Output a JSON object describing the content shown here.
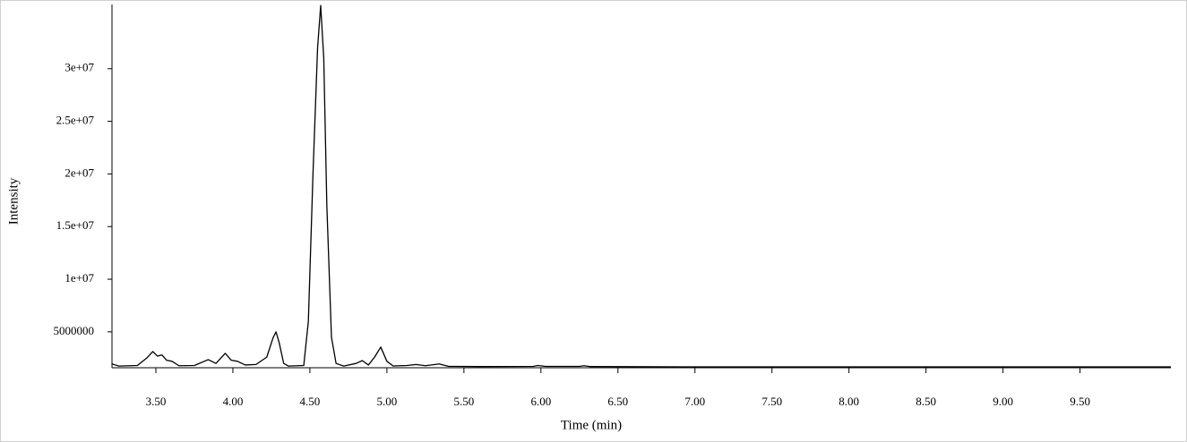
{
  "chart_data": {
    "type": "line",
    "xlabel": "Time (min)",
    "ylabel": "Intensity",
    "color": "#000000",
    "xlim": [
      3.215,
      10.09
    ],
    "ylim": [
      1590000,
      36100000
    ],
    "xticks": [
      {
        "value": 3.5,
        "label": "3.50"
      },
      {
        "value": 4.0,
        "label": "4.00"
      },
      {
        "value": 4.5,
        "label": "4.50"
      },
      {
        "value": 5.0,
        "label": "5.00"
      },
      {
        "value": 5.5,
        "label": "5.50"
      },
      {
        "value": 6.0,
        "label": "6.00"
      },
      {
        "value": 6.5,
        "label": "6.50"
      },
      {
        "value": 7.0,
        "label": "7.00"
      },
      {
        "value": 7.5,
        "label": "7.50"
      },
      {
        "value": 8.0,
        "label": "8.00"
      },
      {
        "value": 8.5,
        "label": "8.50"
      },
      {
        "value": 9.0,
        "label": "9.00"
      },
      {
        "value": 9.5,
        "label": "9.50"
      }
    ],
    "yticks": [
      5000000,
      {
        "value": 10000000,
        "label": "1e+07"
      },
      {
        "value": 15000000,
        "label": "1.5e+07"
      },
      {
        "value": 20000000,
        "label": "2e+07"
      },
      {
        "value": 25000000,
        "label": "2.5e+07"
      },
      {
        "value": 30000000,
        "label": "3e+07"
      }
    ],
    "x": [
      3.215,
      3.26,
      3.38,
      3.44,
      3.48,
      3.51,
      3.54,
      3.57,
      3.605,
      3.65,
      3.75,
      3.84,
      3.89,
      3.95,
      3.99,
      4.03,
      4.08,
      4.15,
      4.22,
      4.26,
      4.28,
      4.3,
      4.33,
      4.36,
      4.46,
      4.49,
      4.52,
      4.55,
      4.57,
      4.59,
      4.61,
      4.64,
      4.67,
      4.72,
      4.8,
      4.84,
      4.88,
      4.92,
      4.96,
      5.0,
      5.04,
      5.13,
      5.19,
      5.25,
      5.34,
      5.4,
      5.6,
      5.95,
      5.98,
      6.03,
      6.25,
      6.28,
      6.32,
      7.0,
      10.09
    ],
    "values": [
      1950000,
      1750000,
      1800000,
      2500000,
      3130000,
      2700000,
      2800000,
      2300000,
      2200000,
      1780000,
      1800000,
      2360000,
      2000000,
      2960000,
      2300000,
      2200000,
      1850000,
      1900000,
      2600000,
      4400000,
      5000000,
      4000000,
      2000000,
      1750000,
      1800000,
      6000000,
      20000000,
      32000000,
      36000000,
      31000000,
      17000000,
      4500000,
      2000000,
      1750000,
      2000000,
      2270000,
      1850000,
      2600000,
      3550000,
      2200000,
      1760000,
      1800000,
      1900000,
      1780000,
      1950000,
      1720000,
      1700000,
      1720000,
      1800000,
      1720000,
      1720000,
      1780000,
      1700000,
      1670000,
      1670000
    ]
  }
}
